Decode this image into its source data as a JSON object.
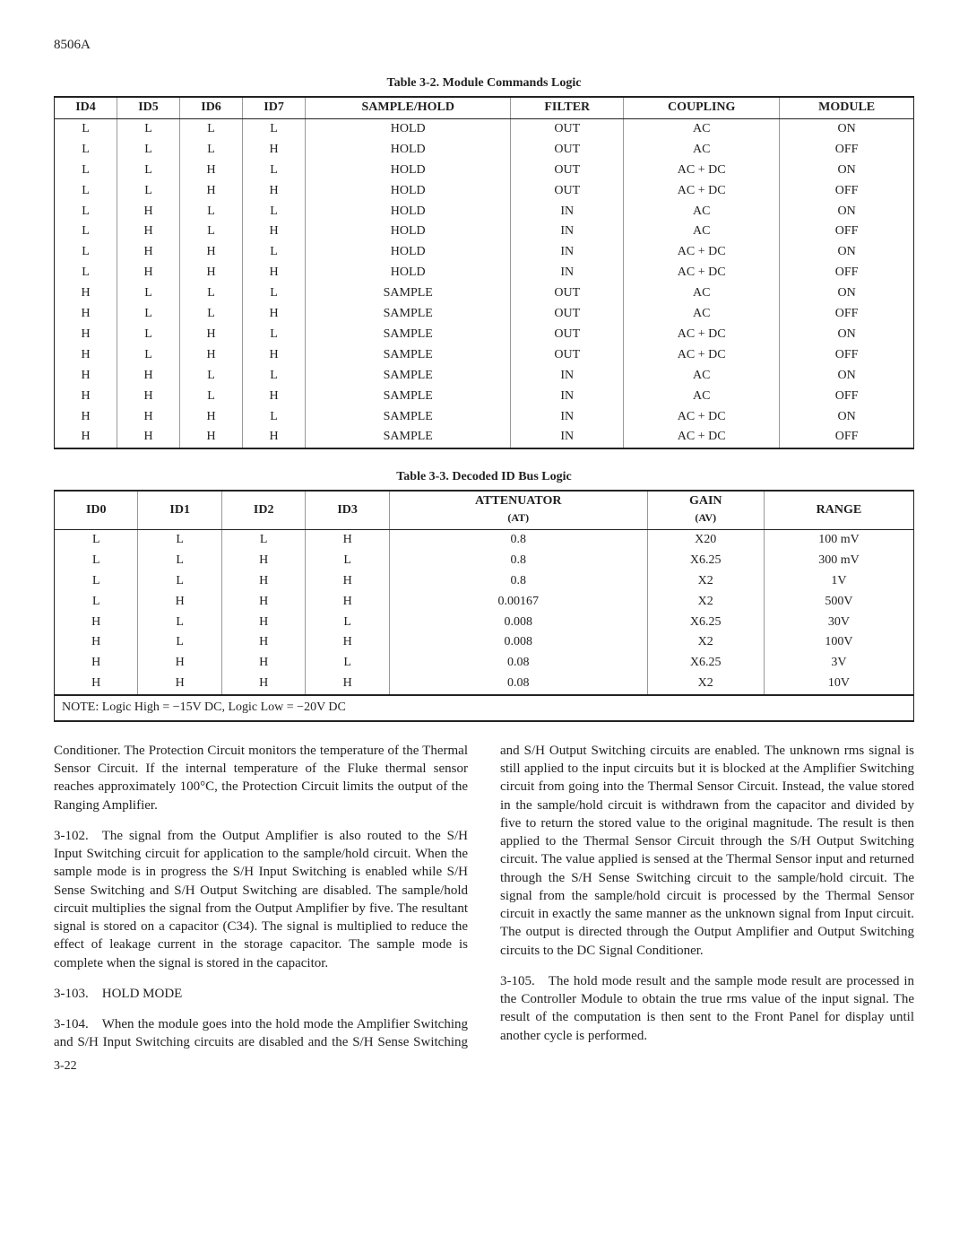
{
  "doc_id": "8506A",
  "page_number": "3-22",
  "table32": {
    "caption": "Table 3-2. Module Commands Logic",
    "headers": [
      "ID4",
      "ID5",
      "ID6",
      "ID7",
      "SAMPLE/HOLD",
      "FILTER",
      "COUPLING",
      "MODULE"
    ],
    "rows": [
      [
        "L",
        "L",
        "L",
        "L",
        "HOLD",
        "OUT",
        "AC",
        "ON"
      ],
      [
        "L",
        "L",
        "L",
        "H",
        "HOLD",
        "OUT",
        "AC",
        "OFF"
      ],
      [
        "L",
        "L",
        "H",
        "L",
        "HOLD",
        "OUT",
        "AC + DC",
        "ON"
      ],
      [
        "L",
        "L",
        "H",
        "H",
        "HOLD",
        "OUT",
        "AC + DC",
        "OFF"
      ],
      [
        "L",
        "H",
        "L",
        "L",
        "HOLD",
        "IN",
        "AC",
        "ON"
      ],
      [
        "L",
        "H",
        "L",
        "H",
        "HOLD",
        "IN",
        "AC",
        "OFF"
      ],
      [
        "L",
        "H",
        "H",
        "L",
        "HOLD",
        "IN",
        "AC + DC",
        "ON"
      ],
      [
        "L",
        "H",
        "H",
        "H",
        "HOLD",
        "IN",
        "AC + DC",
        "OFF"
      ],
      [
        "H",
        "L",
        "L",
        "L",
        "SAMPLE",
        "OUT",
        "AC",
        "ON"
      ],
      [
        "H",
        "L",
        "L",
        "H",
        "SAMPLE",
        "OUT",
        "AC",
        "OFF"
      ],
      [
        "H",
        "L",
        "H",
        "L",
        "SAMPLE",
        "OUT",
        "AC + DC",
        "ON"
      ],
      [
        "H",
        "L",
        "H",
        "H",
        "SAMPLE",
        "OUT",
        "AC + DC",
        "OFF"
      ],
      [
        "H",
        "H",
        "L",
        "L",
        "SAMPLE",
        "IN",
        "AC",
        "ON"
      ],
      [
        "H",
        "H",
        "L",
        "H",
        "SAMPLE",
        "IN",
        "AC",
        "OFF"
      ],
      [
        "H",
        "H",
        "H",
        "L",
        "SAMPLE",
        "IN",
        "AC + DC",
        "ON"
      ],
      [
        "H",
        "H",
        "H",
        "H",
        "SAMPLE",
        "IN",
        "AC + DC",
        "OFF"
      ]
    ]
  },
  "table33": {
    "caption": "Table 3-3. Decoded ID Bus Logic",
    "headers_top": [
      "ID0",
      "ID1",
      "ID2",
      "ID3",
      "ATTENUATOR",
      "GAIN",
      "RANGE"
    ],
    "headers_sub": [
      "",
      "",
      "",
      "",
      "(AT)",
      "(AV)",
      ""
    ],
    "rows": [
      [
        "L",
        "L",
        "L",
        "H",
        "0.8",
        "X20",
        "100 mV"
      ],
      [
        "L",
        "L",
        "H",
        "L",
        "0.8",
        "X6.25",
        "300 mV"
      ],
      [
        "L",
        "L",
        "H",
        "H",
        "0.8",
        "X2",
        "1V"
      ],
      [
        "L",
        "H",
        "H",
        "H",
        "0.00167",
        "X2",
        "500V"
      ],
      [
        "H",
        "L",
        "H",
        "L",
        "0.008",
        "X6.25",
        "30V"
      ],
      [
        "H",
        "L",
        "H",
        "H",
        "0.008",
        "X2",
        "100V"
      ],
      [
        "H",
        "H",
        "H",
        "L",
        "0.08",
        "X6.25",
        "3V"
      ],
      [
        "H",
        "H",
        "H",
        "H",
        "0.08",
        "X2",
        "10V"
      ]
    ],
    "note": "NOTE: Logic High = −15V DC, Logic Low = −20V DC"
  },
  "body": {
    "p1": "Conditioner. The Protection Circuit monitors the temperature of the Thermal Sensor Circuit. If the internal temperature of the Fluke thermal sensor reaches approximately 100°C, the Protection Circuit limits the output of the Ranging Amplifier.",
    "p2": "3-102. The signal from the Output Amplifier is also routed to the S/H Input Switching circuit for application to the sample/hold circuit. When the sample mode is in progress the S/H Input Switching is enabled while S/H Sense Switching and S/H Output Switching are disabled. The sample/hold circuit multiplies the signal from the Output Amplifier by five. The resultant signal is stored on a capacitor (C34). The signal is multiplied to reduce the effect of leakage current in the storage capacitor. The sample mode is complete when the signal is stored in the capacitor.",
    "h3": "3-103. HOLD MODE",
    "p3": "3-104. When the module goes into the hold mode the Amplifier Switching and S/H Input Switching circuits are disabled and the S/H Sense Switching and S/H Output Switching circuits are enabled. The unknown rms signal is still applied to the input circuits but it is blocked at the Amplifier Switching circuit from going into the Thermal Sensor Circuit. Instead, the value stored in the sample/hold circuit is withdrawn from the capacitor and divided by five to return the stored value to the original magnitude. The result is then applied to the Thermal Sensor Circuit through the S/H Output Switching circuit. The value applied is sensed at the Thermal Sensor input and returned through the S/H Sense Switching circuit to the sample/hold circuit. The signal from the sample/hold circuit is processed by the Thermal Sensor circuit in exactly the same manner as the unknown signal from Input circuit. The output is directed through the Output Amplifier and Output Switching circuits to the DC Signal Conditioner.",
    "p4": "3-105. The hold mode result and the sample mode result are processed in the Controller Module to obtain the true rms value of the input signal. The result of the computation is then sent to the Front Panel for display until another cycle is performed."
  }
}
